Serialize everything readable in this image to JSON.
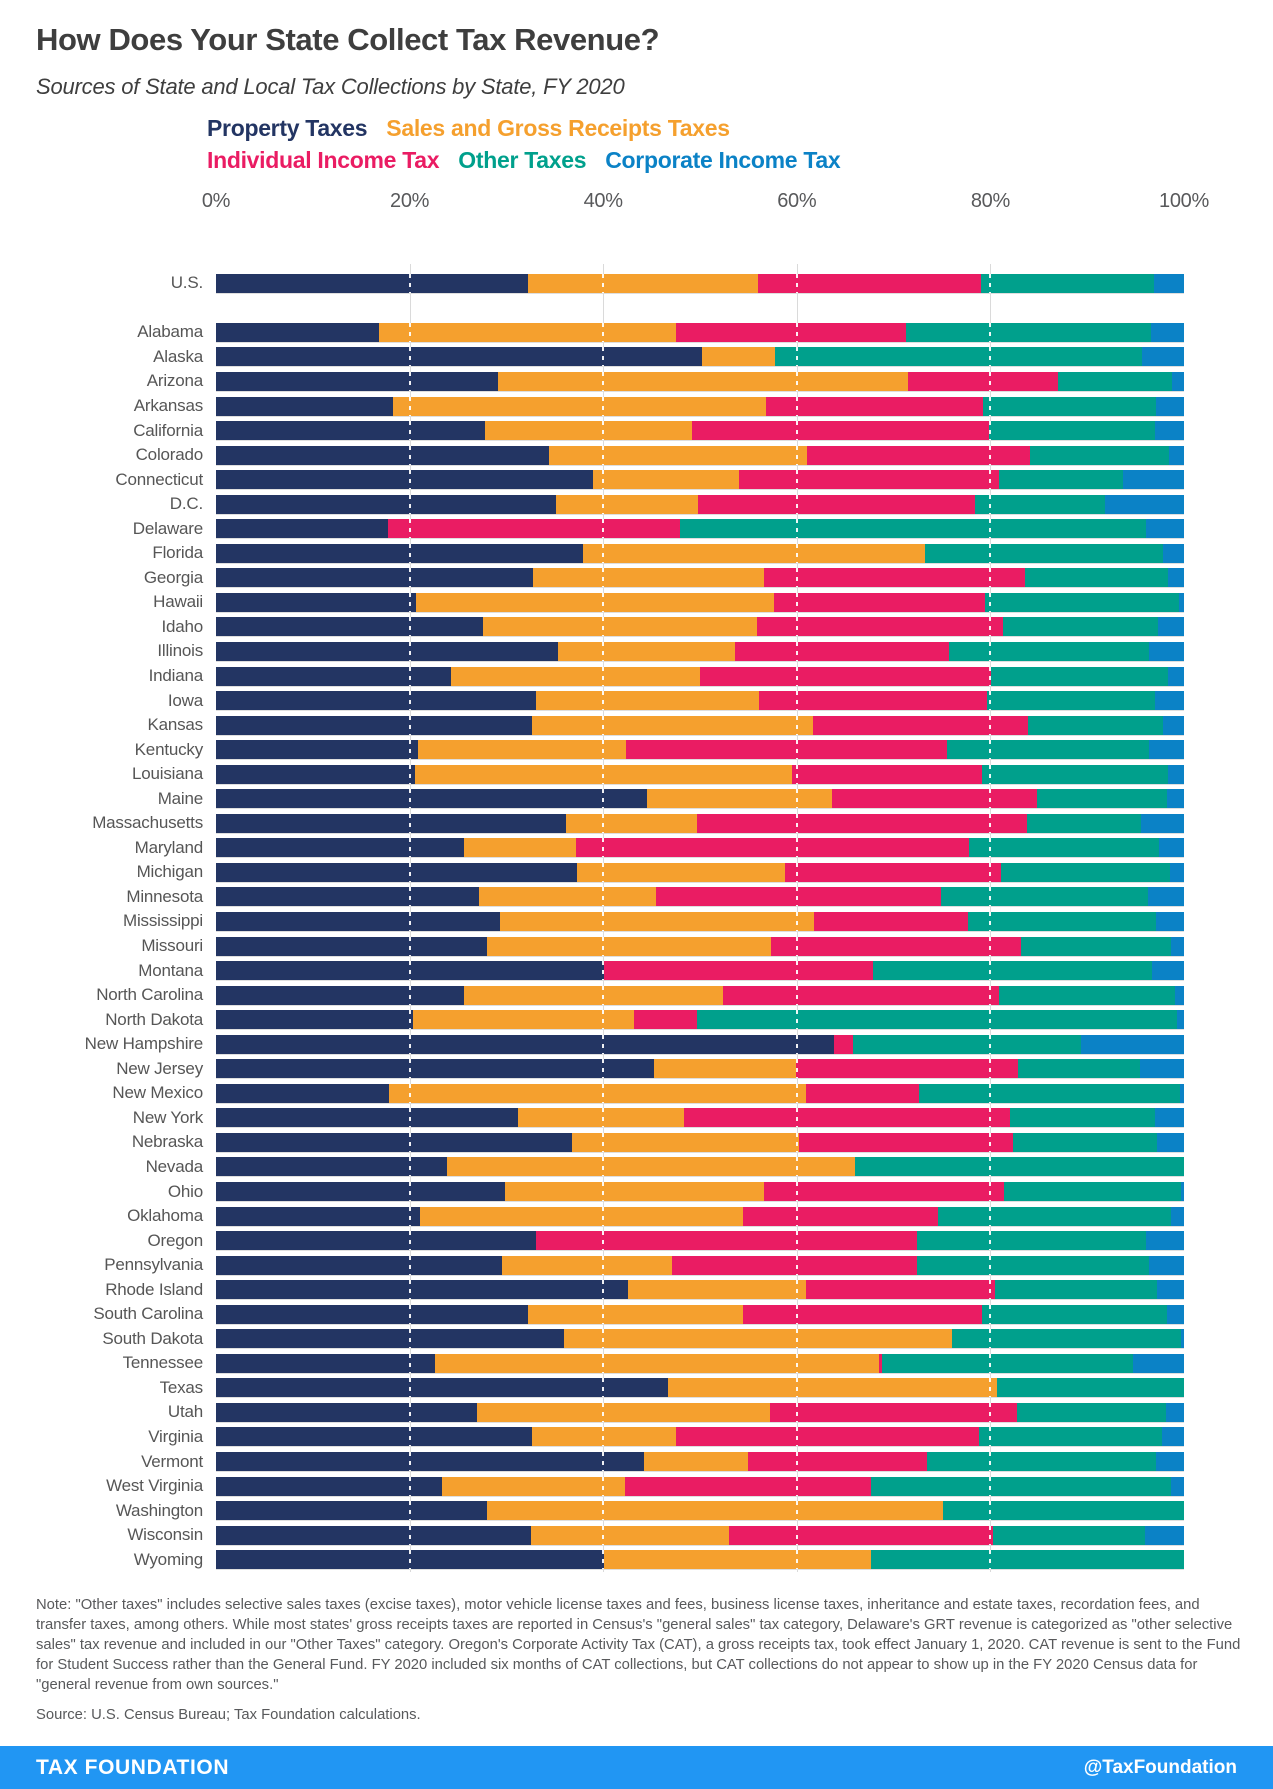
{
  "header": {
    "title": "How Does Your State Collect Tax Revenue?",
    "subtitle": "Sources of State and Local Tax Collections by State, FY 2020"
  },
  "categories": [
    {
      "key": "property",
      "label": "Property Taxes",
      "color": "#233563"
    },
    {
      "key": "sales",
      "label": "Sales and Gross Receipts Taxes",
      "color": "#f5a02e"
    },
    {
      "key": "individual",
      "label": "Individual Income Tax",
      "color": "#ea1c63"
    },
    {
      "key": "other",
      "label": "Other Taxes",
      "color": "#00a08c"
    },
    {
      "key": "corporate",
      "label": "Corporate Income Tax",
      "color": "#0b82c6"
    }
  ],
  "legend_line_split": [
    2,
    3
  ],
  "chart_data": {
    "type": "bar",
    "stacked": true,
    "orientation": "horizontal",
    "unit": "percent",
    "xlim": [
      0,
      100
    ],
    "tick_labels": [
      "0%",
      "20%",
      "40%",
      "60%",
      "80%",
      "100%"
    ],
    "gridlines_at": [
      20,
      40,
      60,
      80
    ],
    "series_order": [
      "property",
      "sales",
      "individual",
      "other",
      "corporate"
    ],
    "rows": [
      {
        "label": "U.S.",
        "property": 32.2,
        "sales": 23.8,
        "individual": 23.0,
        "other": 17.9,
        "corporate": 3.1
      },
      {
        "label": "Alabama",
        "property": 16.8,
        "sales": 30.7,
        "individual": 23.8,
        "other": 25.3,
        "corporate": 3.4
      },
      {
        "label": "Alaska",
        "property": 50.2,
        "sales": 7.5,
        "individual": 0,
        "other": 38.0,
        "corporate": 4.3
      },
      {
        "label": "Arizona",
        "property": 29.1,
        "sales": 42.4,
        "individual": 15.5,
        "other": 11.8,
        "corporate": 1.2
      },
      {
        "label": "Arkansas",
        "property": 18.3,
        "sales": 38.5,
        "individual": 22.4,
        "other": 17.9,
        "corporate": 2.9
      },
      {
        "label": "California",
        "property": 27.8,
        "sales": 21.4,
        "individual": 30.7,
        "other": 17.1,
        "corporate": 3.0
      },
      {
        "label": "Colorado",
        "property": 34.4,
        "sales": 26.7,
        "individual": 23.0,
        "other": 14.4,
        "corporate": 1.5
      },
      {
        "label": "Connecticut",
        "property": 38.9,
        "sales": 15.1,
        "individual": 26.9,
        "other": 12.8,
        "corporate": 6.3
      },
      {
        "label": "D.C.",
        "property": 35.1,
        "sales": 14.7,
        "individual": 28.6,
        "other": 13.4,
        "corporate": 8.2
      },
      {
        "label": "Delaware",
        "property": 17.8,
        "sales": 0,
        "individual": 30.1,
        "other": 48.2,
        "corporate": 3.9
      },
      {
        "label": "Florida",
        "property": 37.9,
        "sales": 35.3,
        "individual": 0,
        "other": 24.6,
        "corporate": 2.2
      },
      {
        "label": "Georgia",
        "property": 32.7,
        "sales": 23.9,
        "individual": 27.0,
        "other": 14.7,
        "corporate": 1.7
      },
      {
        "label": "Hawaii",
        "property": 20.7,
        "sales": 36.9,
        "individual": 21.8,
        "other": 20.1,
        "corporate": 0.5
      },
      {
        "label": "Idaho",
        "property": 27.6,
        "sales": 28.3,
        "individual": 25.4,
        "other": 16.0,
        "corporate": 2.7
      },
      {
        "label": "Illinois",
        "property": 35.3,
        "sales": 18.3,
        "individual": 22.1,
        "other": 20.7,
        "corporate": 3.6
      },
      {
        "label": "Indiana",
        "property": 24.3,
        "sales": 25.7,
        "individual": 30.1,
        "other": 18.2,
        "corporate": 1.7
      },
      {
        "label": "Iowa",
        "property": 33.1,
        "sales": 23.0,
        "individual": 23.6,
        "other": 17.3,
        "corporate": 3.0
      },
      {
        "label": "Kansas",
        "property": 32.6,
        "sales": 29.1,
        "individual": 22.2,
        "other": 13.9,
        "corporate": 2.2
      },
      {
        "label": "Kentucky",
        "property": 20.9,
        "sales": 21.5,
        "individual": 33.1,
        "other": 20.9,
        "corporate": 3.6
      },
      {
        "label": "Louisiana",
        "property": 20.6,
        "sales": 38.9,
        "individual": 19.6,
        "other": 19.3,
        "corporate": 1.6
      },
      {
        "label": "Maine",
        "property": 44.5,
        "sales": 19.1,
        "individual": 21.2,
        "other": 13.4,
        "corporate": 1.8
      },
      {
        "label": "Massachusetts",
        "property": 36.2,
        "sales": 13.5,
        "individual": 34.1,
        "other": 11.8,
        "corporate": 4.4
      },
      {
        "label": "Maryland",
        "property": 25.6,
        "sales": 11.6,
        "individual": 40.6,
        "other": 19.6,
        "corporate": 2.6
      },
      {
        "label": "Michigan",
        "property": 37.3,
        "sales": 21.5,
        "individual": 22.3,
        "other": 17.5,
        "corporate": 1.4
      },
      {
        "label": "Minnesota",
        "property": 27.2,
        "sales": 18.3,
        "individual": 29.4,
        "other": 21.4,
        "corporate": 3.7
      },
      {
        "label": "Mississippi",
        "property": 29.3,
        "sales": 32.5,
        "individual": 15.9,
        "other": 19.4,
        "corporate": 2.9
      },
      {
        "label": "Missouri",
        "property": 28.0,
        "sales": 29.3,
        "individual": 25.9,
        "other": 15.5,
        "corporate": 1.3
      },
      {
        "label": "Montana",
        "property": 40.1,
        "sales": 0,
        "individual": 27.8,
        "other": 28.8,
        "corporate": 3.3
      },
      {
        "label": "North Carolina",
        "property": 25.6,
        "sales": 26.8,
        "individual": 28.5,
        "other": 18.2,
        "corporate": 0.9
      },
      {
        "label": "North Dakota",
        "property": 20.3,
        "sales": 22.9,
        "individual": 6.5,
        "other": 49.6,
        "corporate": 0.7
      },
      {
        "label": "New Hampshire",
        "property": 63.8,
        "sales": 0,
        "individual": 2.0,
        "other": 23.6,
        "corporate": 10.6
      },
      {
        "label": "New Jersey",
        "property": 45.2,
        "sales": 14.7,
        "individual": 23.0,
        "other": 12.6,
        "corporate": 4.5
      },
      {
        "label": "New Mexico",
        "property": 17.9,
        "sales": 43.1,
        "individual": 11.6,
        "other": 27.0,
        "corporate": 0.4
      },
      {
        "label": "New York",
        "property": 31.2,
        "sales": 17.1,
        "individual": 33.7,
        "other": 15.0,
        "corporate": 3.0
      },
      {
        "label": "Nebraska",
        "property": 36.8,
        "sales": 23.4,
        "individual": 22.1,
        "other": 14.9,
        "corporate": 2.8
      },
      {
        "label": "Nevada",
        "property": 23.9,
        "sales": 42.1,
        "individual": 0,
        "other": 34.0,
        "corporate": 0
      },
      {
        "label": "Ohio",
        "property": 29.9,
        "sales": 26.7,
        "individual": 24.8,
        "other": 18.3,
        "corporate": 0.3
      },
      {
        "label": "Oklahoma",
        "property": 21.1,
        "sales": 33.3,
        "individual": 20.2,
        "other": 24.1,
        "corporate": 1.3
      },
      {
        "label": "Oregon",
        "property": 33.1,
        "sales": 0,
        "individual": 39.3,
        "other": 23.7,
        "corporate": 3.9
      },
      {
        "label": "Pennsylvania",
        "property": 29.5,
        "sales": 17.6,
        "individual": 25.3,
        "other": 24.0,
        "corporate": 3.6
      },
      {
        "label": "Rhode Island",
        "property": 42.6,
        "sales": 18.4,
        "individual": 19.5,
        "other": 16.7,
        "corporate": 2.8
      },
      {
        "label": "South Carolina",
        "property": 32.2,
        "sales": 22.2,
        "individual": 24.7,
        "other": 19.1,
        "corporate": 1.8
      },
      {
        "label": "South Dakota",
        "property": 35.9,
        "sales": 40.1,
        "individual": 0,
        "other": 23.7,
        "corporate": 0.3
      },
      {
        "label": "Tennessee",
        "property": 22.6,
        "sales": 45.9,
        "individual": 0.3,
        "other": 25.9,
        "corporate": 5.3
      },
      {
        "label": "Texas",
        "property": 46.7,
        "sales": 34.0,
        "individual": 0,
        "other": 19.3,
        "corporate": 0
      },
      {
        "label": "Utah",
        "property": 27.0,
        "sales": 30.2,
        "individual": 25.5,
        "other": 15.4,
        "corporate": 1.9
      },
      {
        "label": "Virginia",
        "property": 32.6,
        "sales": 14.9,
        "individual": 31.3,
        "other": 18.9,
        "corporate": 2.3
      },
      {
        "label": "Vermont",
        "property": 44.2,
        "sales": 10.8,
        "individual": 18.5,
        "other": 23.6,
        "corporate": 2.9
      },
      {
        "label": "West Virginia",
        "property": 23.3,
        "sales": 19.0,
        "individual": 25.4,
        "other": 31.0,
        "corporate": 1.3
      },
      {
        "label": "Washington",
        "property": 28.0,
        "sales": 47.1,
        "individual": 0,
        "other": 24.9,
        "corporate": 0
      },
      {
        "label": "Wisconsin",
        "property": 32.5,
        "sales": 20.5,
        "individual": 27.3,
        "other": 15.7,
        "corporate": 4.0
      },
      {
        "label": "Wyoming",
        "property": 40.1,
        "sales": 27.6,
        "individual": 0,
        "other": 32.3,
        "corporate": 0
      }
    ]
  },
  "note": {
    "text": "Note: \"Other taxes\" includes selective sales taxes (excise taxes), motor vehicle license taxes and fees, business license taxes, inheritance and estate taxes, recordation fees, and transfer taxes, among others. While most states' gross receipts taxes are reported in Census's \"general sales\" tax category, Delaware's GRT revenue is categorized as \"other selective sales\" tax revenue and included in our \"Other Taxes\" category. Oregon's Corporate Activity Tax (CAT), a gross receipts tax, took effect January 1, 2020. CAT revenue is sent to the Fund for Student Success rather than the General Fund. FY 2020 included six months of CAT collections, but CAT collections do not appear to show up in the FY 2020 Census data for \"general revenue from own sources.\""
  },
  "source": {
    "text": "Source: U.S. Census Bureau; Tax Foundation calculations."
  },
  "footer": {
    "brand": "TAX FOUNDATION",
    "handle": "@TaxFoundation",
    "bar_color": "#2196f3"
  }
}
